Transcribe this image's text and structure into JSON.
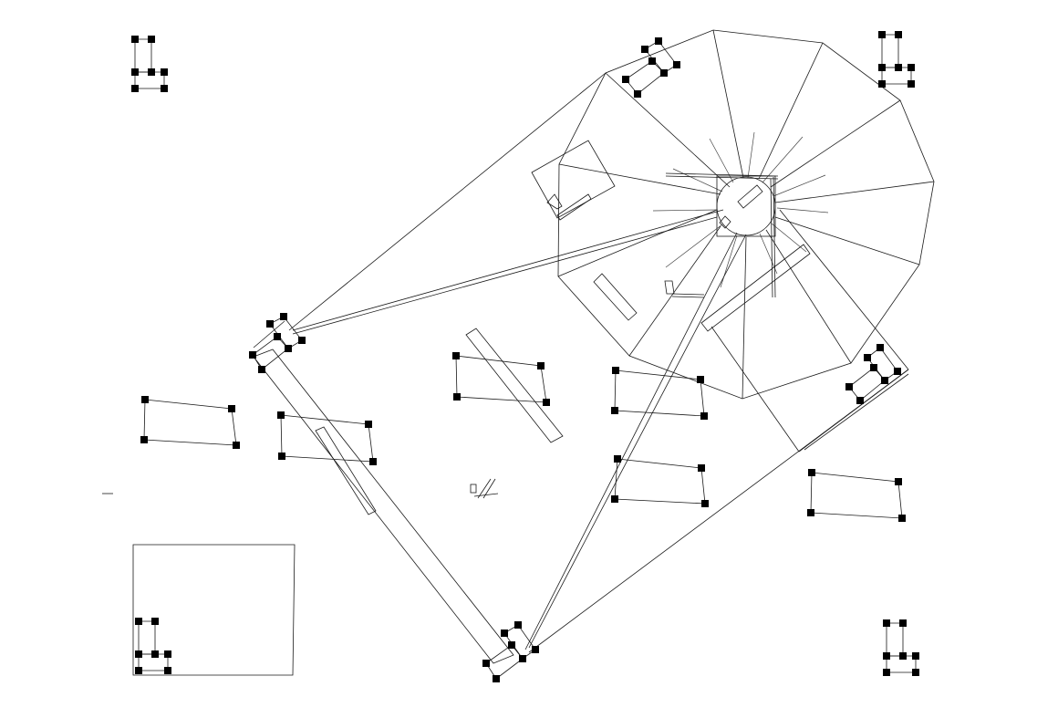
{
  "drawing": {
    "line_color": "#1a1a1a",
    "handle_color": "#000000",
    "background": "#ffffff"
  },
  "elements": [
    {
      "name": "cluster-top-left",
      "kind": "handle-cluster"
    },
    {
      "name": "cluster-top-right",
      "kind": "handle-cluster"
    },
    {
      "name": "cluster-bottom-left",
      "kind": "handle-cluster"
    },
    {
      "name": "cluster-bottom-right",
      "kind": "handle-cluster"
    },
    {
      "name": "main-polygon",
      "kind": "polygon"
    },
    {
      "name": "radial-fan",
      "kind": "line-group"
    },
    {
      "name": "beam",
      "kind": "rectangle"
    },
    {
      "name": "rect-shapes",
      "kind": "quadrilateral-group"
    }
  ]
}
